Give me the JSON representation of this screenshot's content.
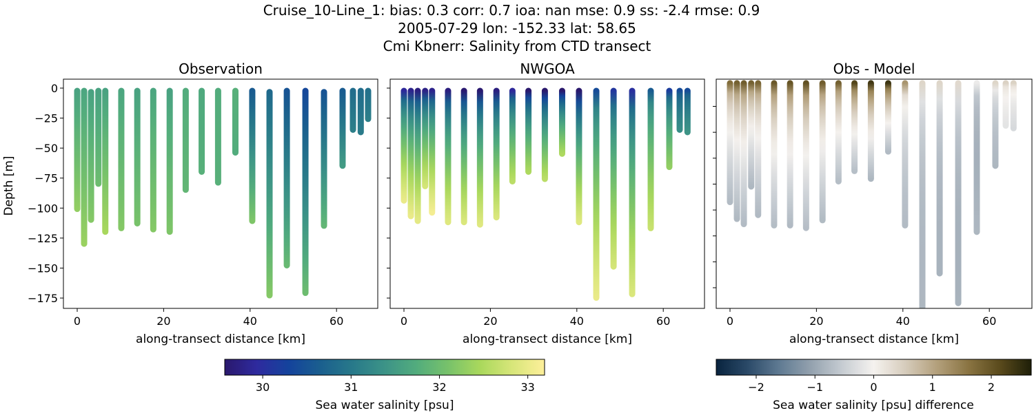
{
  "title_lines": [
    "Cruise_10-Line_1: bias: 0.3  corr: 0.7  ioa: nan  mse: 0.9  ss: -2.4  rmse: 0.9",
    "2005-07-29 lon: -152.33 lat: 58.65",
    "Cmi Kbnerr: Salinity from CTD transect"
  ],
  "ylabel": "Depth [m]",
  "panels": [
    {
      "title": "Observation",
      "xlabel": "along-transect distance [km]"
    },
    {
      "title": "NWGOA",
      "xlabel": "along-transect distance [km]"
    },
    {
      "title": "Obs - Model",
      "xlabel": "along-transect distance [km]"
    }
  ],
  "x_ticks": [
    "0",
    "20",
    "40",
    "60"
  ],
  "y_ticks": [
    "0",
    "−25",
    "−50",
    "−75",
    "−100",
    "−125",
    "−150",
    "−175"
  ],
  "colorbars": [
    {
      "label": "Sea water salinity [psu]",
      "ticks": [
        "30",
        "31",
        "32",
        "33"
      ],
      "range": [
        29.57,
        33.19
      ],
      "colormap": "haline"
    },
    {
      "label": "Sea water salinity [psu] difference",
      "ticks": [
        "−2",
        "−1",
        "0",
        "1",
        "2"
      ],
      "range": [
        -2.68,
        2.68
      ],
      "colormap": "diff"
    }
  ],
  "chart_data": [
    {
      "type": "scatter",
      "title": "Observation",
      "xlabel": "along-transect distance [km]",
      "ylabel": "Depth [m]",
      "xlim": [
        -3.2,
        69.5
      ],
      "ylim": [
        -183.6,
        7.5
      ],
      "color_variable": "Sea water salinity [psu]",
      "profiles_columns": [
        "x_km",
        "top_depth_m",
        "bottom_depth_m",
        "salinity_top",
        "salinity_bottom"
      ],
      "profiles": [
        [
          0,
          0,
          -103,
          31.6,
          32.3
        ],
        [
          1.6,
          0,
          -132,
          31.65,
          32.35
        ],
        [
          3.2,
          -1,
          -112,
          31.6,
          32.2
        ],
        [
          4.9,
          0,
          -82,
          31.6,
          32.0
        ],
        [
          6.5,
          0,
          -122,
          31.6,
          32.45
        ],
        [
          10.2,
          0,
          -119,
          31.65,
          32.2
        ],
        [
          13.9,
          0,
          -115,
          31.6,
          32.1
        ],
        [
          17.6,
          0,
          -120,
          31.65,
          32.2
        ],
        [
          21.4,
          0,
          -122,
          31.6,
          32.15
        ],
        [
          25.1,
          0,
          -87,
          31.75,
          31.9
        ],
        [
          28.8,
          0,
          -72,
          31.7,
          31.8
        ],
        [
          32.6,
          0,
          -81,
          31.75,
          31.8
        ],
        [
          36.6,
          0,
          -56,
          31.8,
          31.75
        ],
        [
          40.5,
          0,
          -113,
          30.6,
          32.15
        ],
        [
          44.5,
          -1,
          -175,
          30.8,
          32.2
        ],
        [
          48.5,
          0,
          -150,
          30.5,
          31.95
        ],
        [
          52.8,
          0,
          -173,
          30.35,
          32.0
        ],
        [
          57.1,
          -1,
          -117,
          30.5,
          31.9
        ],
        [
          61.4,
          0,
          -67,
          30.6,
          31.5
        ],
        [
          63.8,
          0,
          -37,
          30.85,
          31.1
        ],
        [
          65.6,
          0,
          -39,
          30.85,
          31.05
        ],
        [
          67.3,
          0,
          -28,
          30.9,
          31.1
        ]
      ]
    },
    {
      "type": "scatter",
      "title": "NWGOA",
      "xlim": [
        -3.2,
        69.5
      ],
      "ylim": [
        -183.6,
        7.5
      ],
      "profiles_columns": [
        "x_km",
        "bottom_depth_m",
        "salinity_top",
        "salinity_bottom"
      ],
      "profiles": [
        [
          0,
          -96,
          29.9,
          33.0
        ],
        [
          1.6,
          -109,
          29.8,
          33.0
        ],
        [
          3.2,
          -113,
          29.7,
          32.95
        ],
        [
          4.9,
          -84,
          29.75,
          32.8
        ],
        [
          6.5,
          -106,
          29.8,
          33.1
        ],
        [
          10.2,
          -114,
          29.7,
          32.9
        ],
        [
          13.9,
          -114,
          29.6,
          32.85
        ],
        [
          17.6,
          -116,
          29.6,
          32.9
        ],
        [
          21.4,
          -110,
          29.7,
          32.85
        ],
        [
          25.1,
          -80,
          29.9,
          32.6
        ],
        [
          28.8,
          -72,
          29.5,
          32.5
        ],
        [
          32.6,
          -78,
          29.4,
          32.6
        ],
        [
          36.6,
          -57,
          29.4,
          32.5
        ],
        [
          40.5,
          -114,
          29.4,
          32.9
        ],
        [
          44.5,
          -177,
          30.4,
          33.0
        ],
        [
          48.5,
          -151,
          30.1,
          32.8
        ],
        [
          52.8,
          -174,
          30.0,
          32.85
        ],
        [
          57.1,
          -119,
          30.6,
          32.7
        ],
        [
          61.4,
          -68,
          30.2,
          32.3
        ],
        [
          63.8,
          -37,
          30.4,
          31.3
        ],
        [
          65.6,
          -39,
          30.4,
          31.4
        ]
      ]
    },
    {
      "type": "scatter",
      "title": "Obs - Model",
      "xlim": [
        -3.2,
        69.5
      ],
      "ylim": [
        -176,
        1
      ],
      "color_variable": "Sea water salinity [psu] difference"
    }
  ]
}
